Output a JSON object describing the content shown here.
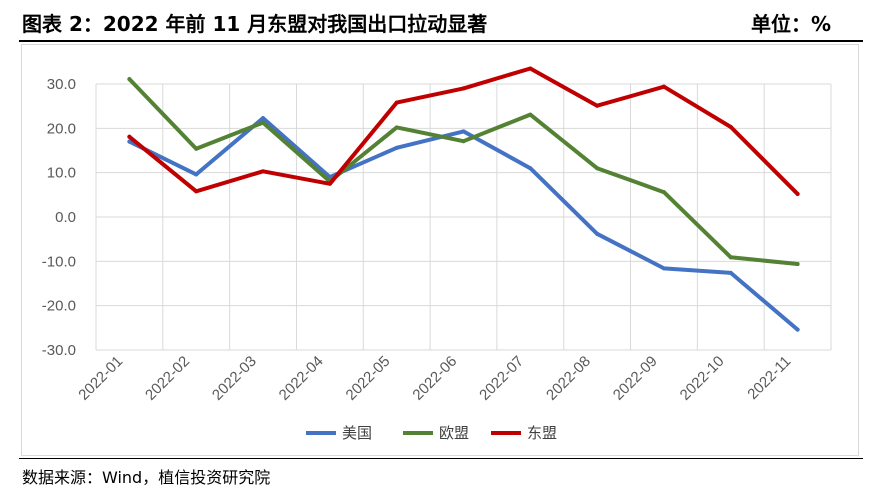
{
  "header": {
    "title": "图表 2：2022 年前 11 月东盟对我国出口拉动显著",
    "unit": "单位：%"
  },
  "footer": {
    "source": "数据来源：Wind，植信投资研究院"
  },
  "chart_data": {
    "type": "line",
    "categories": [
      "2022-01",
      "2022-02",
      "2022-03",
      "2022-04",
      "2022-05",
      "2022-06",
      "2022-07",
      "2022-08",
      "2022-09",
      "2022-10",
      "2022-11"
    ],
    "ylim": [
      -30,
      30
    ],
    "yticks": [
      "30.0",
      "20.0",
      "10.0",
      "0.0",
      "-10.0",
      "-20.0",
      "-30.0"
    ],
    "ytick_values": [
      30,
      20,
      10,
      0,
      -10,
      -20,
      -30
    ],
    "grid": true,
    "legend_position": "bottom",
    "series": [
      {
        "name": "美国",
        "color": "#4472C4",
        "values": [
          17.0,
          9.6,
          22.3,
          9.0,
          15.6,
          19.3,
          11.0,
          -3.8,
          -11.6,
          -12.6,
          -25.4
        ]
      },
      {
        "name": "欧盟",
        "color": "#548235",
        "values": [
          31.1,
          15.4,
          21.3,
          8.0,
          20.2,
          17.1,
          23.1,
          11.0,
          5.6,
          -9.1,
          -10.6
        ]
      },
      {
        "name": "东盟",
        "color": "#C00000",
        "values": [
          18.1,
          5.8,
          10.3,
          7.5,
          25.8,
          29.0,
          33.5,
          25.1,
          29.4,
          20.3,
          5.2
        ]
      }
    ]
  }
}
